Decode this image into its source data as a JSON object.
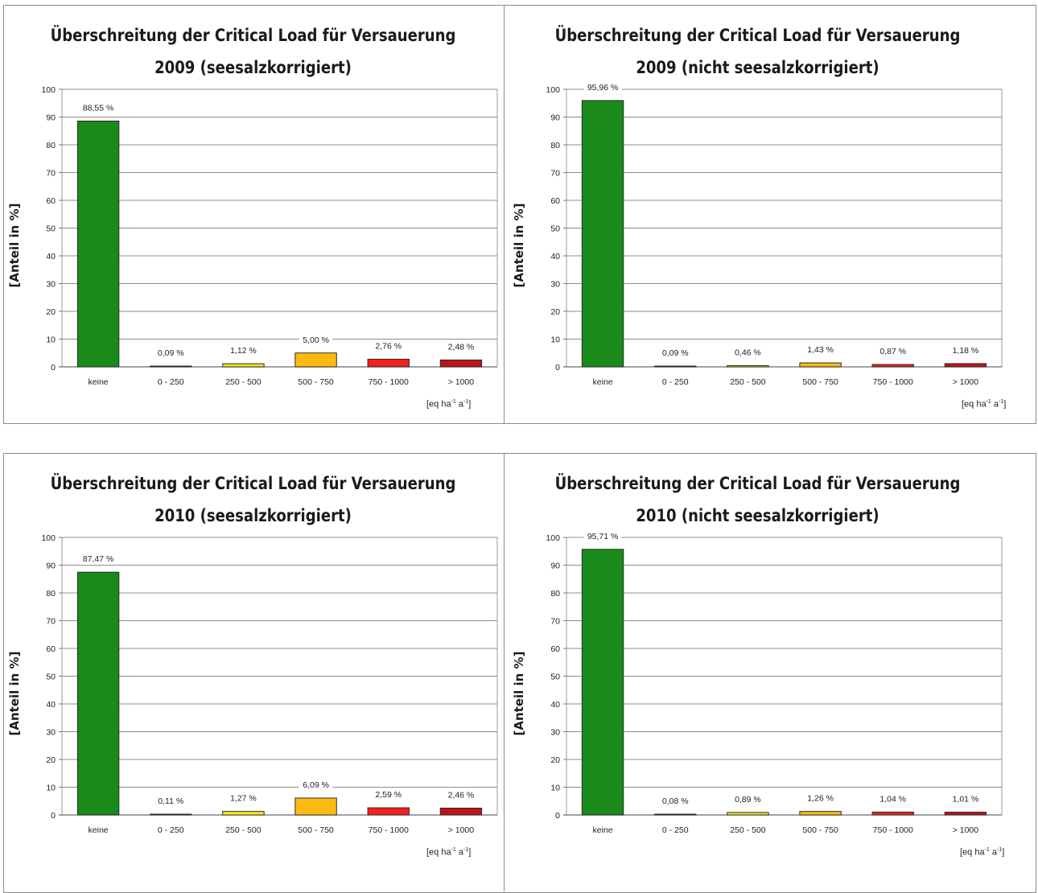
{
  "units": {
    "eq": "[eq ha",
    "ha_exp": "-1",
    "a": " a",
    "a_exp": "-1",
    "close": "]"
  },
  "colors": {
    "keine": "#1a8a1a",
    "0-250": "#6f6f6f",
    "250-500": "#f3ec1e",
    "500-750": "#fdba12",
    "750-1000": "#f2221c",
    ">1000": "#c0121a"
  },
  "chart_data": [
    {
      "type": "bar",
      "title": "Überschreitung der Critical Load für Versauerung",
      "subtitle": "2009 (seesalzkorrigiert)",
      "ylabel": "[Anteil in %]",
      "ylim": [
        0,
        100
      ],
      "yticks": [
        "0",
        "10",
        "20",
        "30",
        "40",
        "50",
        "60",
        "70",
        "80",
        "90",
        "100"
      ],
      "categories": [
        "keine",
        "0 - 250",
        "250 - 500",
        "500 - 750",
        "750 - 1000",
        "> 1000"
      ],
      "values": [
        88.55,
        0.09,
        1.12,
        5.0,
        2.76,
        2.48
      ],
      "labels": [
        "88,55 %",
        "0,09 %",
        "1,12 %",
        "5,00 %",
        "2,76 %",
        "2,48 %"
      ],
      "grid": true
    },
    {
      "type": "bar",
      "title": "Überschreitung der Critical Load für Versauerung",
      "subtitle": "2009 (nicht seesalzkorrigiert)",
      "ylabel": "[Anteil in %]",
      "ylim": [
        0,
        100
      ],
      "yticks": [
        "0",
        "10",
        "20",
        "30",
        "40",
        "50",
        "60",
        "70",
        "80",
        "90",
        "100"
      ],
      "categories": [
        "keine",
        "0 - 250",
        "250 - 500",
        "500 - 750",
        "750 - 1000",
        "> 1000"
      ],
      "values": [
        95.96,
        0.09,
        0.46,
        1.43,
        0.87,
        1.18
      ],
      "labels": [
        "95,96 %",
        "0,09 %",
        "0,46 %",
        "1,43 %",
        "0,87 %",
        "1,18 %"
      ],
      "grid": true
    },
    {
      "type": "bar",
      "title": "Überschreitung der Critical Load für Versauerung",
      "subtitle": "2010 (seesalzkorrigiert)",
      "ylabel": "[Anteil in %]",
      "ylim": [
        0,
        100
      ],
      "yticks": [
        "0",
        "10",
        "20",
        "30",
        "40",
        "50",
        "60",
        "70",
        "80",
        "90",
        "100"
      ],
      "categories": [
        "keine",
        "0 - 250",
        "250 - 500",
        "500 - 750",
        "750 - 1000",
        "> 1000"
      ],
      "values": [
        87.47,
        0.11,
        1.27,
        6.09,
        2.59,
        2.46
      ],
      "labels": [
        "87,47 %",
        "0,11 %",
        "1,27 %",
        "6,09 %",
        "2,59 %",
        "2,46 %"
      ],
      "grid": true
    },
    {
      "type": "bar",
      "title": "Überschreitung der Critical Load für Versauerung",
      "subtitle": "2010 (nicht seesalzkorrigiert)",
      "ylabel": "[Anteil in %]",
      "ylim": [
        0,
        100
      ],
      "yticks": [
        "0",
        "10",
        "20",
        "30",
        "40",
        "50",
        "60",
        "70",
        "80",
        "90",
        "100"
      ],
      "categories": [
        "keine",
        "0 - 250",
        "250 - 500",
        "500 - 750",
        "750 - 1000",
        "> 1000"
      ],
      "values": [
        95.71,
        0.08,
        0.89,
        1.26,
        1.04,
        1.01
      ],
      "labels": [
        "95,71 %",
        "0,08 %",
        "0,89 %",
        "1,26 %",
        "1,04 %",
        "1,01 %"
      ],
      "grid": true
    }
  ]
}
